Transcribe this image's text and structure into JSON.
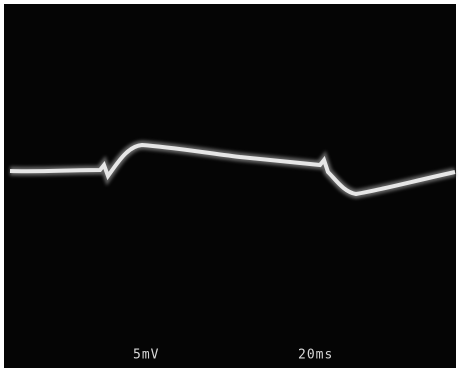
{
  "labels": {
    "vertical_scale": "5mV",
    "time_scale": "20ms"
  }
}
